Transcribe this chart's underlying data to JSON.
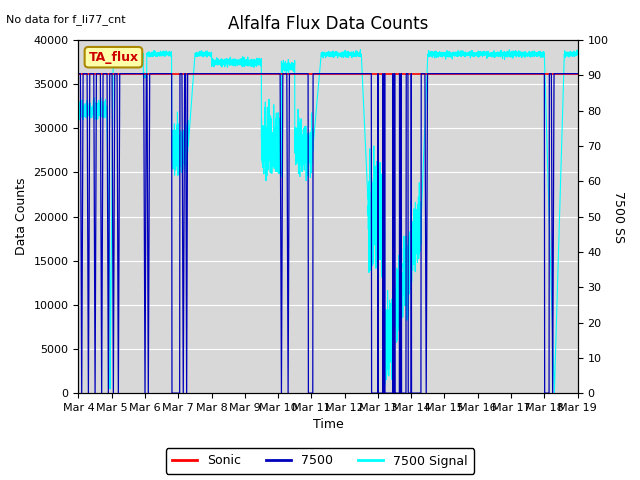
{
  "title": "Alfalfa Flux Data Counts",
  "subtitle": "No data for f_li77_cnt",
  "xlabel": "Time",
  "ylabel_left": "Data Counts",
  "ylabel_right": "7500 SS",
  "annotation": "TA_flux",
  "ylim_left": [
    0,
    40000
  ],
  "ylim_right": [
    0,
    100
  ],
  "yticks_left": [
    0,
    5000,
    10000,
    15000,
    20000,
    25000,
    30000,
    35000,
    40000
  ],
  "yticks_right": [
    0,
    10,
    20,
    30,
    40,
    50,
    60,
    70,
    80,
    90,
    100
  ],
  "x_tick_labels": [
    "Mar 4",
    "Mar 5",
    "Mar 6",
    "Mar 7",
    "Mar 8",
    "Mar 9",
    "Mar 10",
    "Mar 11",
    "Mar 12",
    "Mar 13",
    "Mar 14",
    "Mar 15",
    "Mar 16",
    "Mar 17",
    "Mar 18",
    "Mar 19"
  ],
  "sonic_level": 36200,
  "sonic_color": "#ff0000",
  "line_7500_color": "#0000bb",
  "line_7500_signal_color": "#00ffff",
  "bg_color": "#d8d8d8",
  "legend_entries": [
    "Sonic",
    "7500",
    "7500 Signal"
  ],
  "legend_colors": [
    "#ff0000",
    "#0000bb",
    "#00ffff"
  ],
  "title_fontsize": 12,
  "axis_label_fontsize": 9,
  "tick_fontsize": 8
}
